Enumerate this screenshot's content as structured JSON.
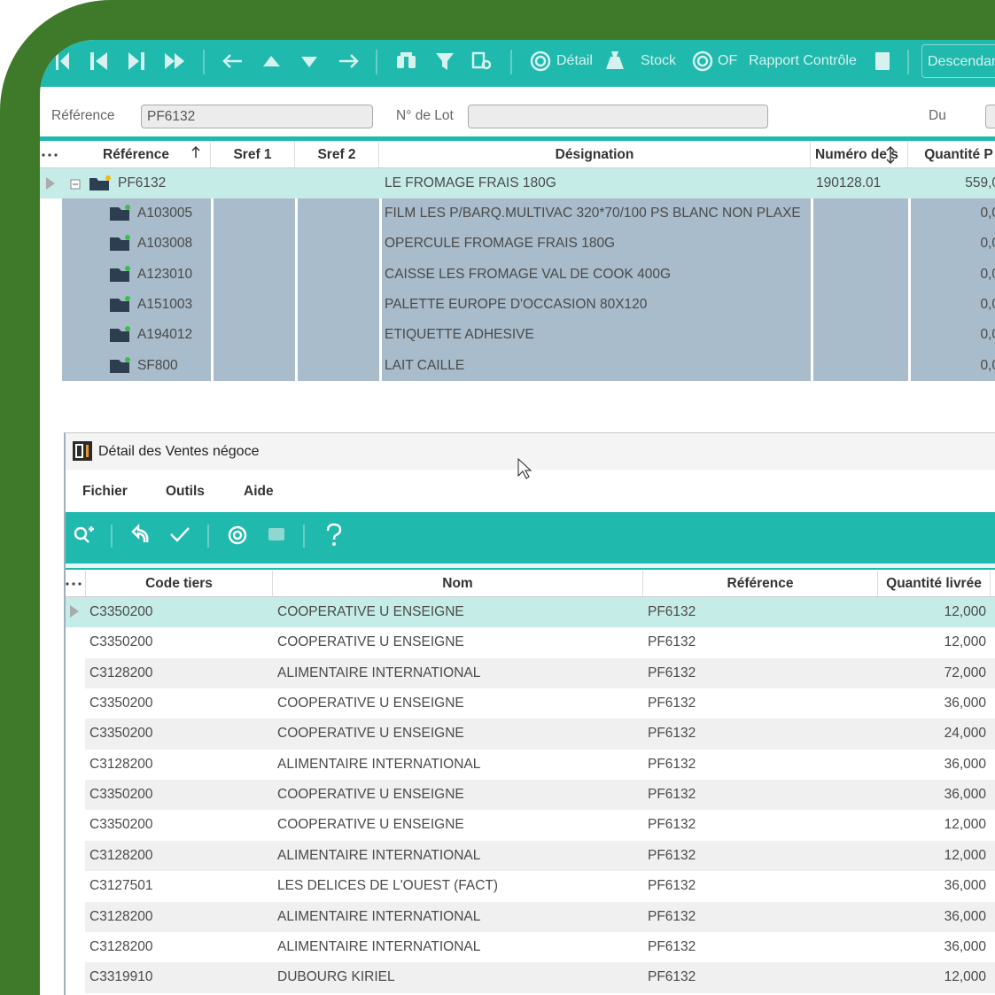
{
  "toolbar": {
    "buttons": [
      "Détail",
      "Stock",
      "OF",
      "Rapport Contrôle"
    ],
    "sort_order": "Descendan"
  },
  "filters": {
    "reference_label": "Référence",
    "reference_value": "PF6132",
    "lot_label": "N° de Lot",
    "date_label": "Du"
  },
  "main_grid": {
    "columns": [
      "Référence",
      "Sref 1",
      "Sref 2",
      "Désignation",
      "Numéro de s",
      "Quantité P"
    ],
    "parent": {
      "reference": "PF6132",
      "designation": "LE FROMAGE FRAIS  180G",
      "lot_number": "190128.01",
      "quantity": "559,0"
    },
    "children": [
      {
        "reference": "A103005",
        "designation": "FILM LES  P/BARQ.MULTIVAC 320*70/100 PS BLANC NON PLAXE",
        "quantity": "0,0"
      },
      {
        "reference": "A103008",
        "designation": "OPERCULE FROMAGE FRAIS 180G",
        "quantity": "0,0"
      },
      {
        "reference": "A123010",
        "designation": "CAISSE LES  FROMAGE VAL DE COOK 400G",
        "quantity": "0,0"
      },
      {
        "reference": "A151003",
        "designation": "PALETTE EUROPE D'OCCASION 80X120",
        "quantity": "0,0"
      },
      {
        "reference": "A194012",
        "designation": "ETIQUETTE ADHESIVE",
        "quantity": "0,0"
      },
      {
        "reference": "SF800",
        "designation": "LAIT CAILLE",
        "quantity": "0,0"
      }
    ]
  },
  "dialog": {
    "title": "Détail des Ventes négoce",
    "menu": [
      "Fichier",
      "Outils",
      "Aide"
    ],
    "grid": {
      "columns": [
        "Code tiers",
        "Nom",
        "Référence",
        "Quantité livrée"
      ],
      "rows": [
        [
          "C3350200",
          "COOPERATIVE U ENSEIGNE",
          "PF6132",
          "12,000"
        ],
        [
          "C3350200",
          "COOPERATIVE U ENSEIGNE",
          "PF6132",
          "12,000"
        ],
        [
          "C3128200",
          "ALIMENTAIRE INTERNATIONAL",
          "PF6132",
          "72,000"
        ],
        [
          "C3350200",
          "COOPERATIVE U ENSEIGNE",
          "PF6132",
          "36,000"
        ],
        [
          "C3350200",
          "COOPERATIVE U ENSEIGNE",
          "PF6132",
          "24,000"
        ],
        [
          "C3128200",
          "ALIMENTAIRE INTERNATIONAL",
          "PF6132",
          "36,000"
        ],
        [
          "C3350200",
          "COOPERATIVE U ENSEIGNE",
          "PF6132",
          "36,000"
        ],
        [
          "C3350200",
          "COOPERATIVE U ENSEIGNE",
          "PF6132",
          "12,000"
        ],
        [
          "C3128200",
          "ALIMENTAIRE INTERNATIONAL",
          "PF6132",
          "12,000"
        ],
        [
          "C3127501",
          "LES DELICES DE L'OUEST (FACT)",
          "PF6132",
          "36,000"
        ],
        [
          "C3128200",
          "ALIMENTAIRE INTERNATIONAL",
          "PF6132",
          "36,000"
        ],
        [
          "C3128200",
          "ALIMENTAIRE INTERNATIONAL",
          "PF6132",
          "36,000"
        ],
        [
          "C3319910",
          "DUBOURG KIRIEL",
          "PF6132",
          "12,000"
        ]
      ]
    }
  }
}
